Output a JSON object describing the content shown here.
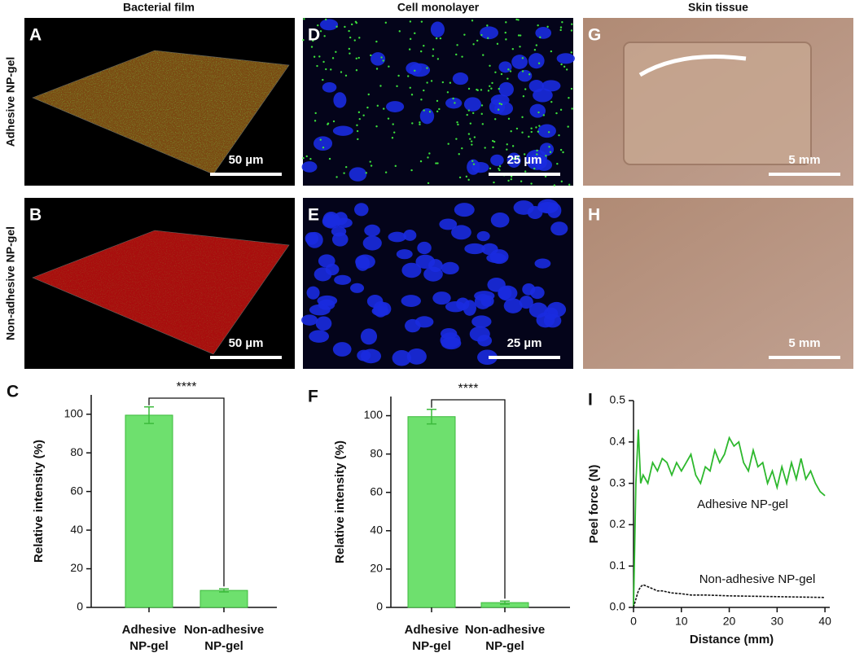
{
  "panels": {
    "letters": [
      "A",
      "B",
      "C",
      "D",
      "E",
      "F",
      "G",
      "H",
      "I"
    ],
    "column_titles": [
      "Bacterial film",
      "Cell monolayer",
      "Skin tissue"
    ],
    "row_titles": [
      "Adhesive NP-gel",
      "Non-adhesive NP-gel"
    ],
    "scale_bars": [
      "50 µm",
      "50 µm",
      "25 µm",
      "25 µm",
      "5 mm",
      "5 mm"
    ]
  },
  "chart_data": [
    {
      "type": "bar",
      "categories": [
        "Adhesive NP-gel",
        "Non-adhesive NP-gel"
      ],
      "values": [
        99.5,
        8.8
      ],
      "errors": [
        4.3,
        0.8
      ],
      "color": "#6ee06e",
      "edge_color": "#3cba3c",
      "ylabel": "Relative intensity (%)",
      "ylim": [
        0,
        110
      ],
      "yticks": [
        0,
        20,
        40,
        60,
        80,
        100
      ],
      "annotation": "****"
    },
    {
      "type": "bar",
      "categories": [
        "Adhesive NP-gel",
        "Non-adhesive NP-gel"
      ],
      "values": [
        99.5,
        2.5
      ],
      "errors": [
        3.8,
        0.8
      ],
      "color": "#6ee06e",
      "edge_color": "#3cba3c",
      "ylabel": "Relative intensity (%)",
      "ylim": [
        0,
        110
      ],
      "yticks": [
        0,
        20,
        40,
        60,
        80,
        100
      ],
      "annotation": "****"
    },
    {
      "type": "line",
      "xlabel": "Distance (mm)",
      "ylabel": "Peel force (N)",
      "xlim": [
        0,
        41
      ],
      "ylim": [
        0,
        0.5
      ],
      "xticks": [
        0,
        10,
        20,
        30,
        40
      ],
      "yticks": [
        {
          "value": 0,
          "label": "0.0"
        },
        0.1,
        0.2,
        0.3,
        0.4,
        {
          "value": 0.5,
          "label": "0.5"
        }
      ],
      "series": [
        {
          "name": "Adhesive NP-gel",
          "color": "#2db82d",
          "x": [
            0,
            0.5,
            1,
            1.5,
            2,
            3,
            4,
            5,
            6,
            7,
            8,
            9,
            10,
            11,
            12,
            13,
            14,
            15,
            16,
            17,
            18,
            19,
            20,
            21,
            22,
            23,
            24,
            25,
            26,
            27,
            28,
            29,
            30,
            31,
            32,
            33,
            34,
            35,
            36,
            37,
            38,
            39,
            40
          ],
          "values": [
            0,
            0.3,
            0.43,
            0.3,
            0.32,
            0.3,
            0.35,
            0.33,
            0.36,
            0.35,
            0.32,
            0.35,
            0.33,
            0.35,
            0.37,
            0.32,
            0.3,
            0.34,
            0.33,
            0.38,
            0.35,
            0.37,
            0.41,
            0.39,
            0.4,
            0.35,
            0.33,
            0.38,
            0.34,
            0.35,
            0.3,
            0.33,
            0.29,
            0.34,
            0.3,
            0.35,
            0.31,
            0.36,
            0.31,
            0.33,
            0.3,
            0.28,
            0.27
          ]
        },
        {
          "name": "Non-adhesive NP-gel",
          "color": "#111111",
          "x": [
            0,
            0.5,
            1,
            1.5,
            2,
            3,
            4,
            5,
            6,
            8,
            10,
            12,
            15,
            20,
            25,
            30,
            35,
            40
          ],
          "values": [
            0,
            0.02,
            0.04,
            0.05,
            0.055,
            0.05,
            0.045,
            0.04,
            0.04,
            0.035,
            0.033,
            0.03,
            0.03,
            0.028,
            0.027,
            0.026,
            0.025,
            0.024
          ]
        }
      ]
    }
  ]
}
